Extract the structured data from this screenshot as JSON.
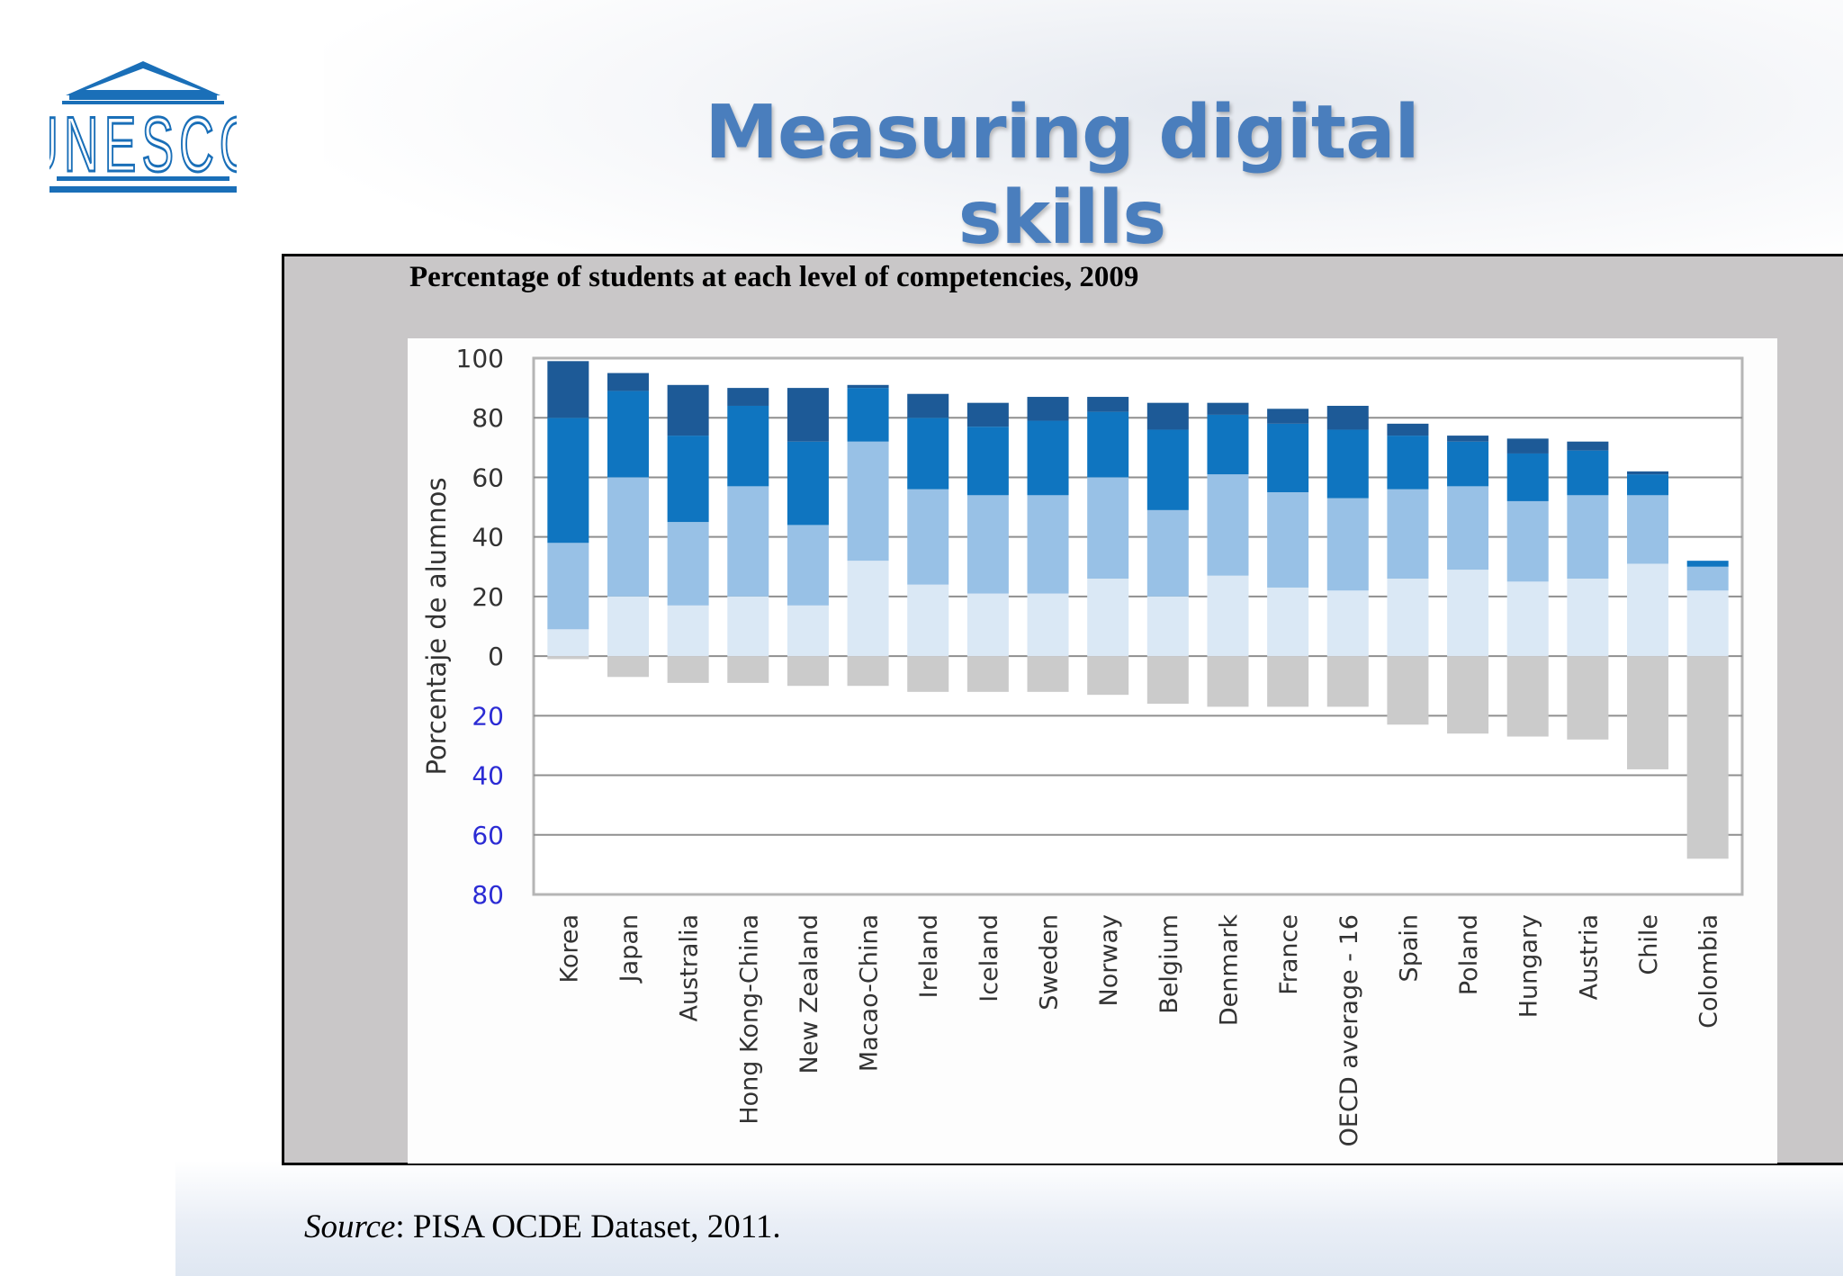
{
  "slide": {
    "title": "Measuring digital skills",
    "logo_text": "UNESCO",
    "source_label": "Source",
    "source_text": ": PISA OCDE Dataset, 2011."
  },
  "colors": {
    "title": "#4a7ebd",
    "level_top": "#1d5a97",
    "level_high": "#0f75c0",
    "level_mid": "#98c1e6",
    "level_low": "#dae8f5",
    "below_baseline": "#cbcbcb",
    "positive_ticks": "#333333",
    "negative_ticks": "#2b2bd4"
  },
  "chart_data": {
    "type": "bar",
    "stacked": true,
    "title": "Percentage of students at each level of competencies, 2009",
    "ylabel": "Porcentaje de alumnos",
    "xlabel": "",
    "ylim": [
      -80,
      100
    ],
    "yticks": [
      100,
      80,
      60,
      40,
      20,
      0,
      -20,
      -40,
      -60,
      -80
    ],
    "ytick_labels": [
      "100",
      "80",
      "60",
      "40",
      "20",
      "0",
      "20",
      "40",
      "60",
      "80"
    ],
    "grid": true,
    "categories": [
      "Korea",
      "Japan",
      "Australia",
      "Hong Kong-China",
      "New Zealand",
      "Macao-China",
      "Ireland",
      "Iceland",
      "Sweden",
      "Norway",
      "Belgium",
      "Denmark",
      "France",
      "OECD average - 16",
      "Spain",
      "Poland",
      "Hungary",
      "Austria",
      "Chile",
      "Colombia"
    ],
    "series": [
      {
        "values": [
          -1,
          -7,
          -9,
          -9,
          -10,
          -10,
          -12,
          -12,
          -12,
          -13,
          -16,
          -17,
          -17,
          -17,
          -23,
          -26,
          -27,
          -28,
          -38,
          -68
        ]
      },
      {
        "values": [
          9,
          20,
          17,
          20,
          17,
          32,
          24,
          21,
          21,
          26,
          20,
          27,
          23,
          22,
          26,
          29,
          25,
          26,
          31,
          22
        ]
      },
      {
        "values": [
          29,
          40,
          28,
          37,
          27,
          40,
          32,
          33,
          33,
          34,
          29,
          34,
          32,
          31,
          30,
          28,
          27,
          28,
          23,
          8
        ]
      },
      {
        "values": [
          42,
          29,
          29,
          27,
          28,
          18,
          24,
          23,
          25,
          22,
          27,
          20,
          23,
          23,
          18,
          15,
          16,
          15,
          7,
          2
        ]
      },
      {
        "values": [
          19,
          6,
          17,
          6,
          18,
          1,
          8,
          8,
          8,
          5,
          9,
          4,
          5,
          8,
          4,
          2,
          5,
          3,
          1,
          0
        ]
      }
    ]
  }
}
